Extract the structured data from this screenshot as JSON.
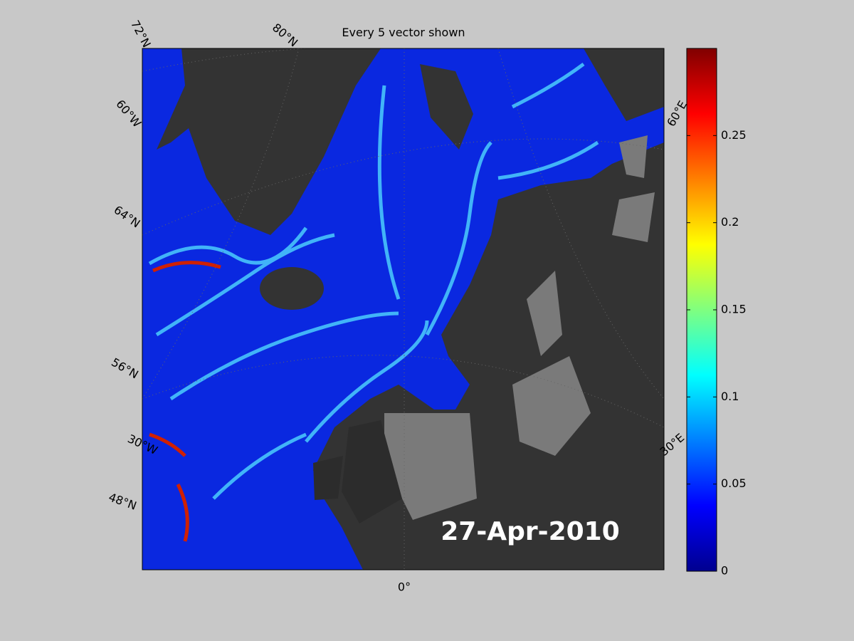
{
  "title": "Every 5 vector shown",
  "date_label": "27-Apr-2010",
  "graticule_labels": [
    "72°N",
    "80°N",
    "60°W",
    "64°N",
    "56°N",
    "30°W",
    "48°N",
    "0°",
    "60°E",
    "30°E"
  ],
  "colorbar": {
    "colormap": "jet",
    "clim": [
      0,
      0.3
    ],
    "ticks": [
      0,
      0.05,
      0.1,
      0.15,
      0.2,
      0.25
    ]
  }
}
